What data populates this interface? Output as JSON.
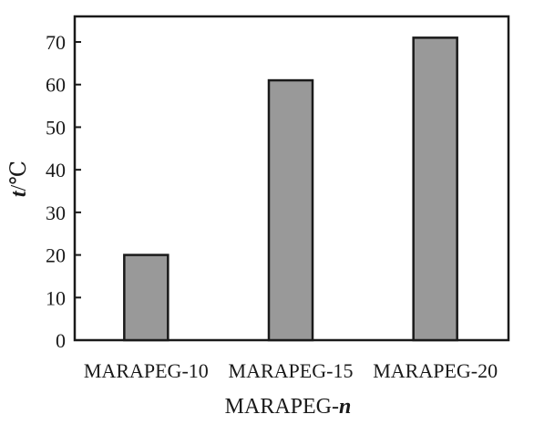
{
  "chart_data": {
    "type": "bar",
    "categories": [
      "MARAPEG-10",
      "MARAPEG-15",
      "MARAPEG-20"
    ],
    "values": [
      20,
      61,
      71
    ],
    "xlabel": {
      "prefix": "MARAPEG-",
      "italic": "n"
    },
    "ylabel": {
      "italic": "t",
      "suffix": "/℃"
    },
    "ylim": [
      0,
      76
    ],
    "yticks": [
      0,
      10,
      20,
      30,
      40,
      50,
      60,
      70
    ],
    "bar_color": "#999999",
    "bar_edge": "#1a1a1a",
    "grid": false,
    "legend": "none"
  }
}
